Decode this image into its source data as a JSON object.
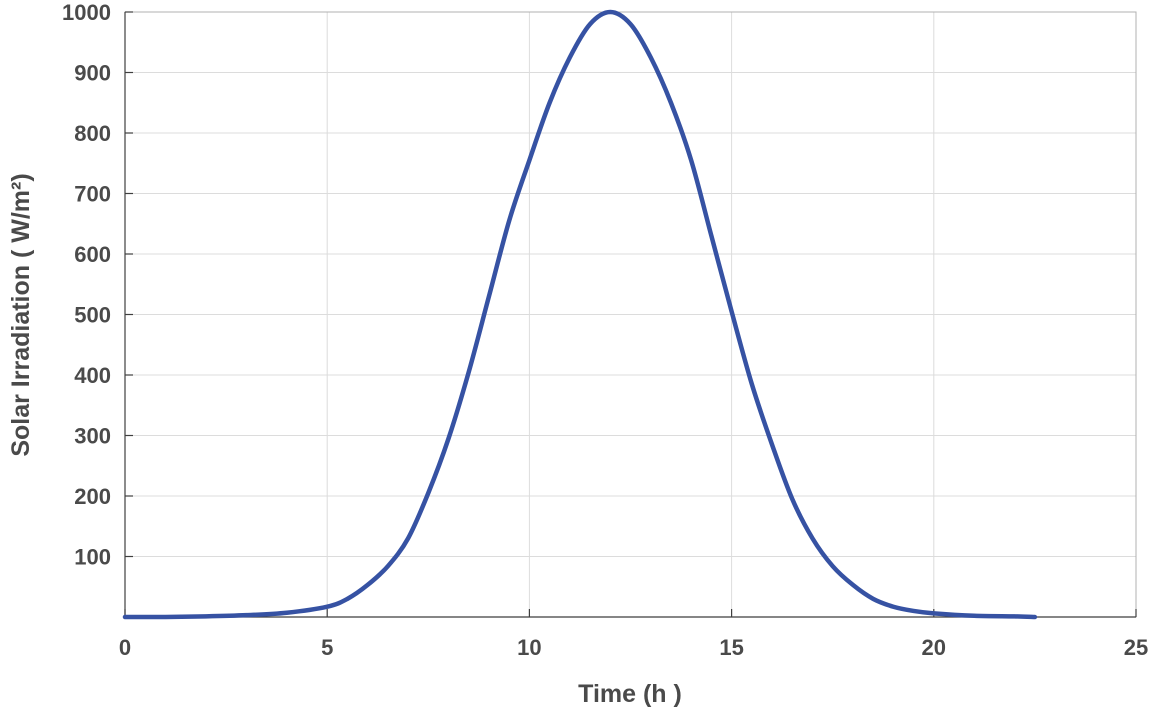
{
  "chart_data": {
    "type": "line",
    "title": "",
    "xlabel": "Time (h )",
    "ylabel": "Solar Irradiation ( W/m²)",
    "xlim": [
      0,
      25
    ],
    "ylim": [
      0,
      1000
    ],
    "xticks": [
      0,
      5,
      10,
      15,
      20,
      25
    ],
    "yticks": [
      100,
      200,
      300,
      400,
      500,
      600,
      700,
      800,
      900,
      1000
    ],
    "grid": true,
    "legend": "none",
    "series": [
      {
        "color": "#3652a3",
        "x": [
          0,
          1,
          2,
          3,
          4,
          5,
          5.5,
          6,
          6.5,
          7,
          7.5,
          8,
          8.5,
          9,
          9.5,
          10,
          10.5,
          11,
          11.5,
          12,
          12.5,
          13,
          13.5,
          14,
          14.5,
          15,
          15.5,
          16,
          16.5,
          17,
          17.5,
          18,
          18.5,
          19,
          19.5,
          20,
          21,
          22,
          22.5
        ],
        "y": [
          0,
          0,
          1,
          3,
          7,
          17,
          30,
          53,
          84,
          130,
          205,
          295,
          405,
          530,
          655,
          755,
          850,
          925,
          980,
          1000,
          980,
          925,
          850,
          755,
          630,
          505,
          385,
          285,
          195,
          130,
          84,
          53,
          30,
          17,
          10,
          6,
          2,
          1,
          0
        ]
      }
    ]
  }
}
